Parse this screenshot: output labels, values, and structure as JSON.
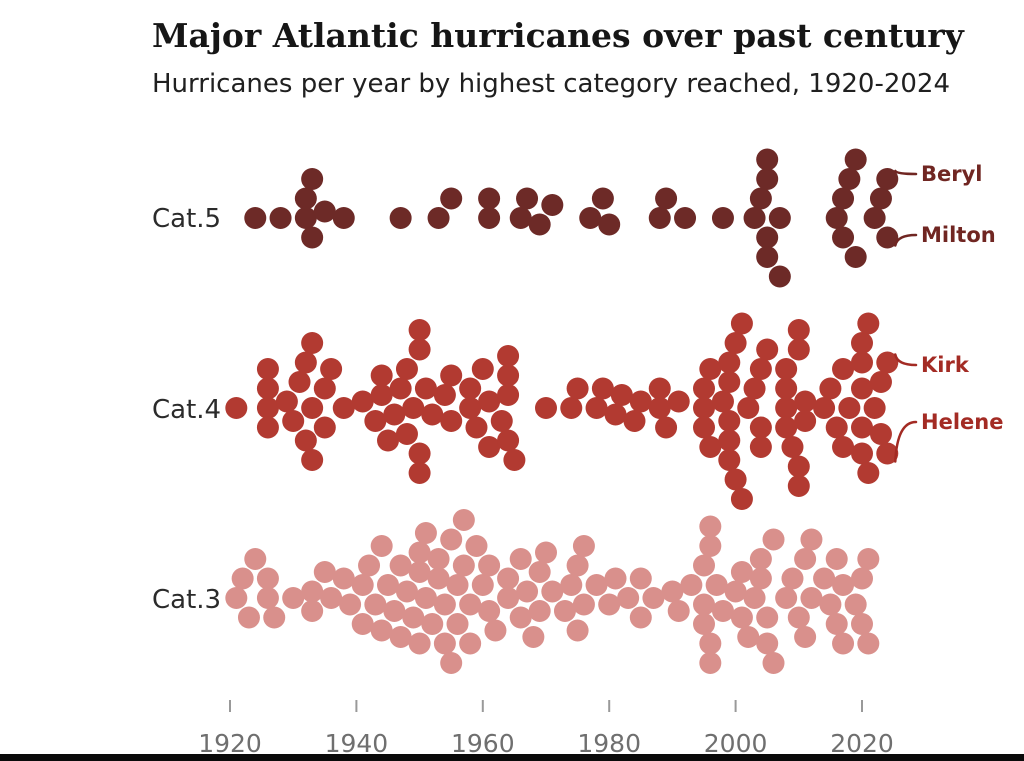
{
  "chart_data": {
    "type": "beeswarm",
    "title": "Major Atlantic hurricanes over past century",
    "subtitle": "Hurricanes per year by highest category reached, 1920-2024",
    "x_axis": {
      "ticks": [
        1920,
        1940,
        1960,
        1980,
        2000,
        2020
      ],
      "year_min": 1920,
      "year_max": 2024,
      "grid": false,
      "tick_color": "#999999",
      "label_color": "#6f6f6f"
    },
    "legend_position": "none",
    "rows": [
      {
        "label": "Cat.5",
        "color": "#6d2a27",
        "counts": {
          "1924": 1,
          "1928": 1,
          "1932": 2,
          "1933": 2,
          "1935": 1,
          "1938": 1,
          "1947": 1,
          "1953": 1,
          "1955": 1,
          "1961": 2,
          "1966": 1,
          "1967": 1,
          "1969": 1,
          "1971": 1,
          "1977": 1,
          "1979": 1,
          "1980": 1,
          "1988": 1,
          "1989": 1,
          "1992": 1,
          "1998": 1,
          "2003": 1,
          "2004": 1,
          "2005": 4,
          "2007": 2,
          "2016": 1,
          "2017": 2,
          "2018": 1,
          "2019": 2,
          "2022": 1,
          "2023": 1,
          "2024": 2
        }
      },
      {
        "label": "Cat.4",
        "color": "#b23a31",
        "counts": {
          "1921": 1,
          "1926": 4,
          "1929": 1,
          "1930": 1,
          "1931": 1,
          "1932": 2,
          "1933": 3,
          "1935": 2,
          "1936": 1,
          "1938": 1,
          "1941": 1,
          "1943": 1,
          "1944": 2,
          "1945": 1,
          "1946": 1,
          "1947": 1,
          "1948": 2,
          "1949": 1,
          "1950": 4,
          "1951": 1,
          "1952": 1,
          "1954": 1,
          "1955": 2,
          "1958": 2,
          "1959": 1,
          "1960": 1,
          "1961": 2,
          "1963": 1,
          "1964": 4,
          "1965": 1,
          "1970": 1,
          "1974": 1,
          "1975": 1,
          "1978": 1,
          "1979": 1,
          "1981": 1,
          "1982": 1,
          "1984": 1,
          "1985": 1,
          "1988": 2,
          "1989": 1,
          "1991": 1,
          "1995": 3,
          "1996": 2,
          "1998": 1,
          "1999": 5,
          "2000": 2,
          "2001": 2,
          "2002": 1,
          "2003": 1,
          "2004": 3,
          "2005": 1,
          "2008": 4,
          "2009": 1,
          "2010": 4,
          "2011": 2,
          "2014": 1,
          "2015": 1,
          "2016": 1,
          "2017": 2,
          "2018": 1,
          "2020": 5,
          "2021": 2,
          "2022": 1,
          "2023": 2,
          "2024": 2
        }
      },
      {
        "label": "Cat.3",
        "color": "#d9908c",
        "counts": {
          "1921": 1,
          "1922": 1,
          "1923": 1,
          "1924": 1,
          "1926": 2,
          "1927": 1,
          "1930": 1,
          "1933": 2,
          "1935": 1,
          "1936": 1,
          "1938": 1,
          "1939": 1,
          "1941": 2,
          "1942": 1,
          "1943": 1,
          "1944": 2,
          "1945": 1,
          "1946": 1,
          "1947": 2,
          "1948": 1,
          "1949": 1,
          "1950": 3,
          "1951": 2,
          "1952": 1,
          "1953": 2,
          "1954": 2,
          "1955": 2,
          "1956": 2,
          "1957": 2,
          "1958": 2,
          "1959": 1,
          "1960": 1,
          "1961": 2,
          "1962": 1,
          "1964": 2,
          "1966": 2,
          "1967": 1,
          "1968": 1,
          "1969": 2,
          "1970": 1,
          "1971": 1,
          "1973": 1,
          "1974": 1,
          "1975": 2,
          "1976": 2,
          "1978": 1,
          "1980": 1,
          "1981": 1,
          "1983": 1,
          "1985": 2,
          "1987": 1,
          "1990": 1,
          "1991": 1,
          "1993": 1,
          "1995": 3,
          "1996": 4,
          "1997": 1,
          "1998": 1,
          "2000": 1,
          "2001": 2,
          "2002": 1,
          "2003": 1,
          "2004": 2,
          "2005": 2,
          "2006": 2,
          "2008": 1,
          "2009": 1,
          "2010": 1,
          "2011": 2,
          "2012": 2,
          "2014": 1,
          "2015": 1,
          "2016": 2,
          "2017": 2,
          "2019": 1,
          "2020": 2,
          "2021": 2
        }
      }
    ],
    "annotations": [
      {
        "label": "Beryl",
        "row": 0,
        "year": 2024,
        "anchor": "top",
        "color": "#702622"
      },
      {
        "label": "Milton",
        "row": 0,
        "year": 2024,
        "anchor": "bottom",
        "color": "#702622"
      },
      {
        "label": "Kirk",
        "row": 1,
        "year": 2024,
        "anchor": "top",
        "color": "#a32b24"
      },
      {
        "label": "Helene",
        "row": 1,
        "year": 2024,
        "anchor": "bottom",
        "color": "#a32b24"
      }
    ],
    "bottom_bar_color": "#0a0a0a"
  }
}
